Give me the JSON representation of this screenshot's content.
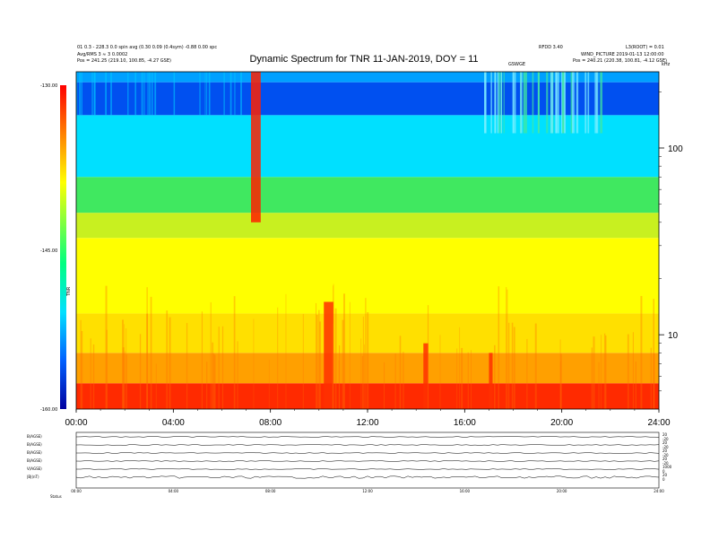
{
  "header": {
    "title": "Dynamic Spectrum for TNR 11-JAN-2019, DOY = 11",
    "left_line1": "01 0.3 - 228.3 0.0 spin avg (0.30 0.09 (0.4sym) -0.88 0.00 spc",
    "left_line2": "Avg/RMS 3 ≈ 3 0.0002",
    "left_line3": "Pos = 241.25 (219.10, 100.85, -4.27 GSE)",
    "right_top_a": "RFDD 3.40",
    "right_top_b": "L3(ROOT) = 0.01",
    "right_line2": "WIND_PICTURE 2019-01-13 12:00:00",
    "right_line3": "Pos = 240.21 (220.38, 100.81, -4.12 GSE)",
    "center_small": "GSWGE",
    "right_corner": "kHz"
  },
  "colorbar": {
    "top_label": "-130.00",
    "mid_label": "-145.00",
    "bottom_label": "-160.00",
    "unit_label": "TNR"
  },
  "chart_data": {
    "type": "heatmap",
    "title": "Dynamic Spectrum for TNR 11-JAN-2019, DOY = 11",
    "x_axis": {
      "ticks": [
        "00:00",
        "04:00",
        "08:00",
        "12:00",
        "16:00",
        "20:00",
        "24:00"
      ],
      "range_hours": [
        0,
        24
      ]
    },
    "y_axis": {
      "scale": "log",
      "ticks": [
        "100",
        "10"
      ],
      "range_khz": [
        4,
        256
      ],
      "side": "right",
      "unit": "kHz"
    },
    "colorbar_range": [
      -160,
      -130
    ],
    "colors": [
      "#0a00b0",
      "#0050ff",
      "#00e0ff",
      "#30e050",
      "#ffff00",
      "#ff8000",
      "#ff2000"
    ],
    "bands_khz": [
      {
        "from": 4,
        "to": 5.5,
        "color": "#ff2a00"
      },
      {
        "from": 5.5,
        "to": 8,
        "color": "#ffa000"
      },
      {
        "from": 8,
        "to": 13,
        "color": "#ffe000"
      },
      {
        "from": 13,
        "to": 33,
        "color": "#ffff00"
      },
      {
        "from": 33,
        "to": 45,
        "color": "#c8f020"
      },
      {
        "from": 45,
        "to": 70,
        "color": "#40e860"
      },
      {
        "from": 70,
        "to": 150,
        "color": "#00e0ff"
      },
      {
        "from": 150,
        "to": 225,
        "color": "#0050f0"
      },
      {
        "from": 225,
        "to": 256,
        "color": "#00a0ff"
      }
    ],
    "bursts": [
      {
        "t_start": 7.2,
        "t_end": 7.6,
        "khz_from": 40,
        "khz_to": 256,
        "color": "#ff2000"
      },
      {
        "t_start": 10.2,
        "t_end": 10.6,
        "khz_from": 4,
        "khz_to": 15,
        "color": "#ff3000"
      },
      {
        "t_start": 14.3,
        "t_end": 14.5,
        "khz_from": 4,
        "khz_to": 9,
        "color": "#ff3000"
      },
      {
        "t_start": 17.0,
        "t_end": 17.15,
        "khz_from": 4,
        "khz_to": 8,
        "color": "#ff3000"
      }
    ]
  },
  "lower_panels": {
    "rows": [
      {
        "left_label": "B(AGSE)",
        "right_top": "20",
        "right_bottom": "-20"
      },
      {
        "left_label": "B(AGSE)",
        "right_top": "20",
        "right_bottom": "-20"
      },
      {
        "left_label": "B(AGSE)",
        "right_top": "20",
        "right_bottom": "-20"
      },
      {
        "left_label": "B(AGSE)",
        "right_top": "20",
        "right_bottom": "-20"
      },
      {
        "left_label": "V(AGSE)",
        "right_top": "1000",
        "right_bottom": "0"
      },
      {
        "left_label": "|B|(nT)",
        "right_top": "20",
        "right_bottom": "0"
      }
    ],
    "time_ticks": [
      "00:00",
      "04:00",
      "08:00",
      "12:00",
      "16:00",
      "20:00",
      "24:00"
    ],
    "footer_label": "Status"
  }
}
